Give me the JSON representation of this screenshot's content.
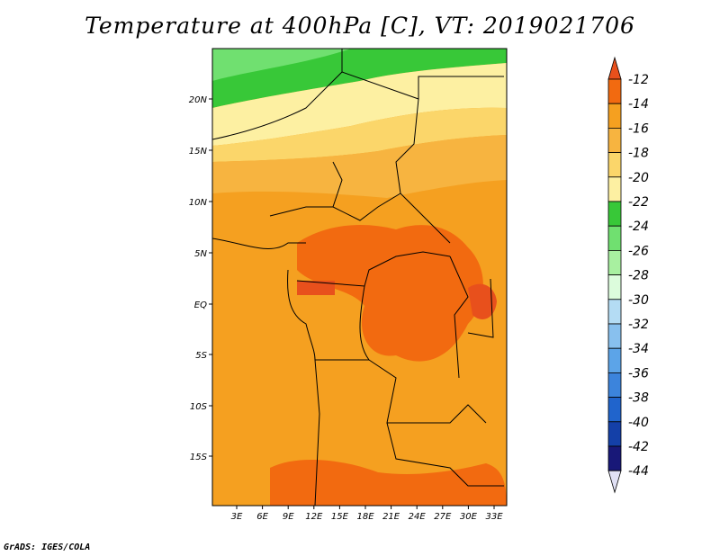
{
  "title": "Temperature at 400hPa [C], VT: 2019021706",
  "credit": "GrADS: IGES/COLA",
  "map": {
    "lat_labels": [
      "20N",
      "15N",
      "10N",
      "5N",
      "EQ",
      "5S",
      "10S",
      "15S"
    ],
    "lon_labels": [
      "3E",
      "6E",
      "9E",
      "12E",
      "15E",
      "18E",
      "21E",
      "24E",
      "27E",
      "30E",
      "33E"
    ]
  },
  "legend": {
    "levels": [
      "-12",
      "-14",
      "-16",
      "-18",
      "-20",
      "-22",
      "-24",
      "-26",
      "-28",
      "-30",
      "-32",
      "-34",
      "-36",
      "-38",
      "-40",
      "-42",
      "-44"
    ],
    "colors": [
      "#e8501c",
      "#f26a10",
      "#f5a020",
      "#f7b440",
      "#fbd66a",
      "#fdf0a2",
      "#38c838",
      "#70e070",
      "#a8f0a0",
      "#dcfcdc",
      "#b4dcf4",
      "#88c0ee",
      "#5ca4e8",
      "#3c84dc",
      "#2064cc",
      "#1440a8",
      "#181878",
      "#e0e0f4"
    ]
  }
}
